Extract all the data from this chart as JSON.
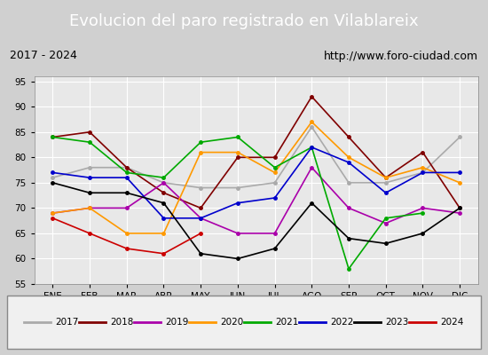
{
  "title": "Evolucion del paro registrado en Vilablareix",
  "subtitle_left": "2017 - 2024",
  "subtitle_right": "http://www.foro-ciudad.com",
  "months": [
    "ENE",
    "FEB",
    "MAR",
    "ABR",
    "MAY",
    "JUN",
    "JUL",
    "AGO",
    "SEP",
    "OCT",
    "NOV",
    "DIC"
  ],
  "ylim": [
    55,
    96
  ],
  "yticks": [
    55,
    60,
    65,
    70,
    75,
    80,
    85,
    90,
    95
  ],
  "series": {
    "2017": {
      "color": "#aaaaaa",
      "data": [
        76,
        78,
        78,
        75,
        74,
        74,
        75,
        86,
        75,
        75,
        77,
        84
      ]
    },
    "2018": {
      "color": "#800000",
      "data": [
        84,
        85,
        78,
        73,
        70,
        80,
        80,
        92,
        84,
        76,
        81,
        70
      ]
    },
    "2019": {
      "color": "#aa00aa",
      "data": [
        69,
        70,
        70,
        75,
        68,
        65,
        65,
        78,
        70,
        67,
        70,
        69
      ]
    },
    "2020": {
      "color": "#ff9900",
      "data": [
        69,
        70,
        65,
        65,
        81,
        81,
        77,
        87,
        80,
        76,
        78,
        75
      ]
    },
    "2021": {
      "color": "#00aa00",
      "data": [
        84,
        83,
        77,
        76,
        83,
        84,
        78,
        82,
        58,
        68,
        69,
        null
      ]
    },
    "2022": {
      "color": "#0000cc",
      "data": [
        77,
        76,
        76,
        68,
        68,
        71,
        72,
        82,
        79,
        73,
        77,
        77
      ]
    },
    "2023": {
      "color": "#000000",
      "data": [
        75,
        73,
        73,
        71,
        61,
        60,
        62,
        71,
        64,
        63,
        65,
        70
      ]
    },
    "2024": {
      "color": "#cc0000",
      "data": [
        68,
        65,
        62,
        61,
        65,
        null,
        null,
        null,
        null,
        null,
        null,
        null
      ]
    }
  },
  "title_bg": "#4472c4",
  "title_color": "#ffffff",
  "subtitle_bg": "#e0e0e0",
  "subtitle_color": "#000000",
  "plot_bg": "#e8e8e8",
  "grid_color": "#ffffff"
}
